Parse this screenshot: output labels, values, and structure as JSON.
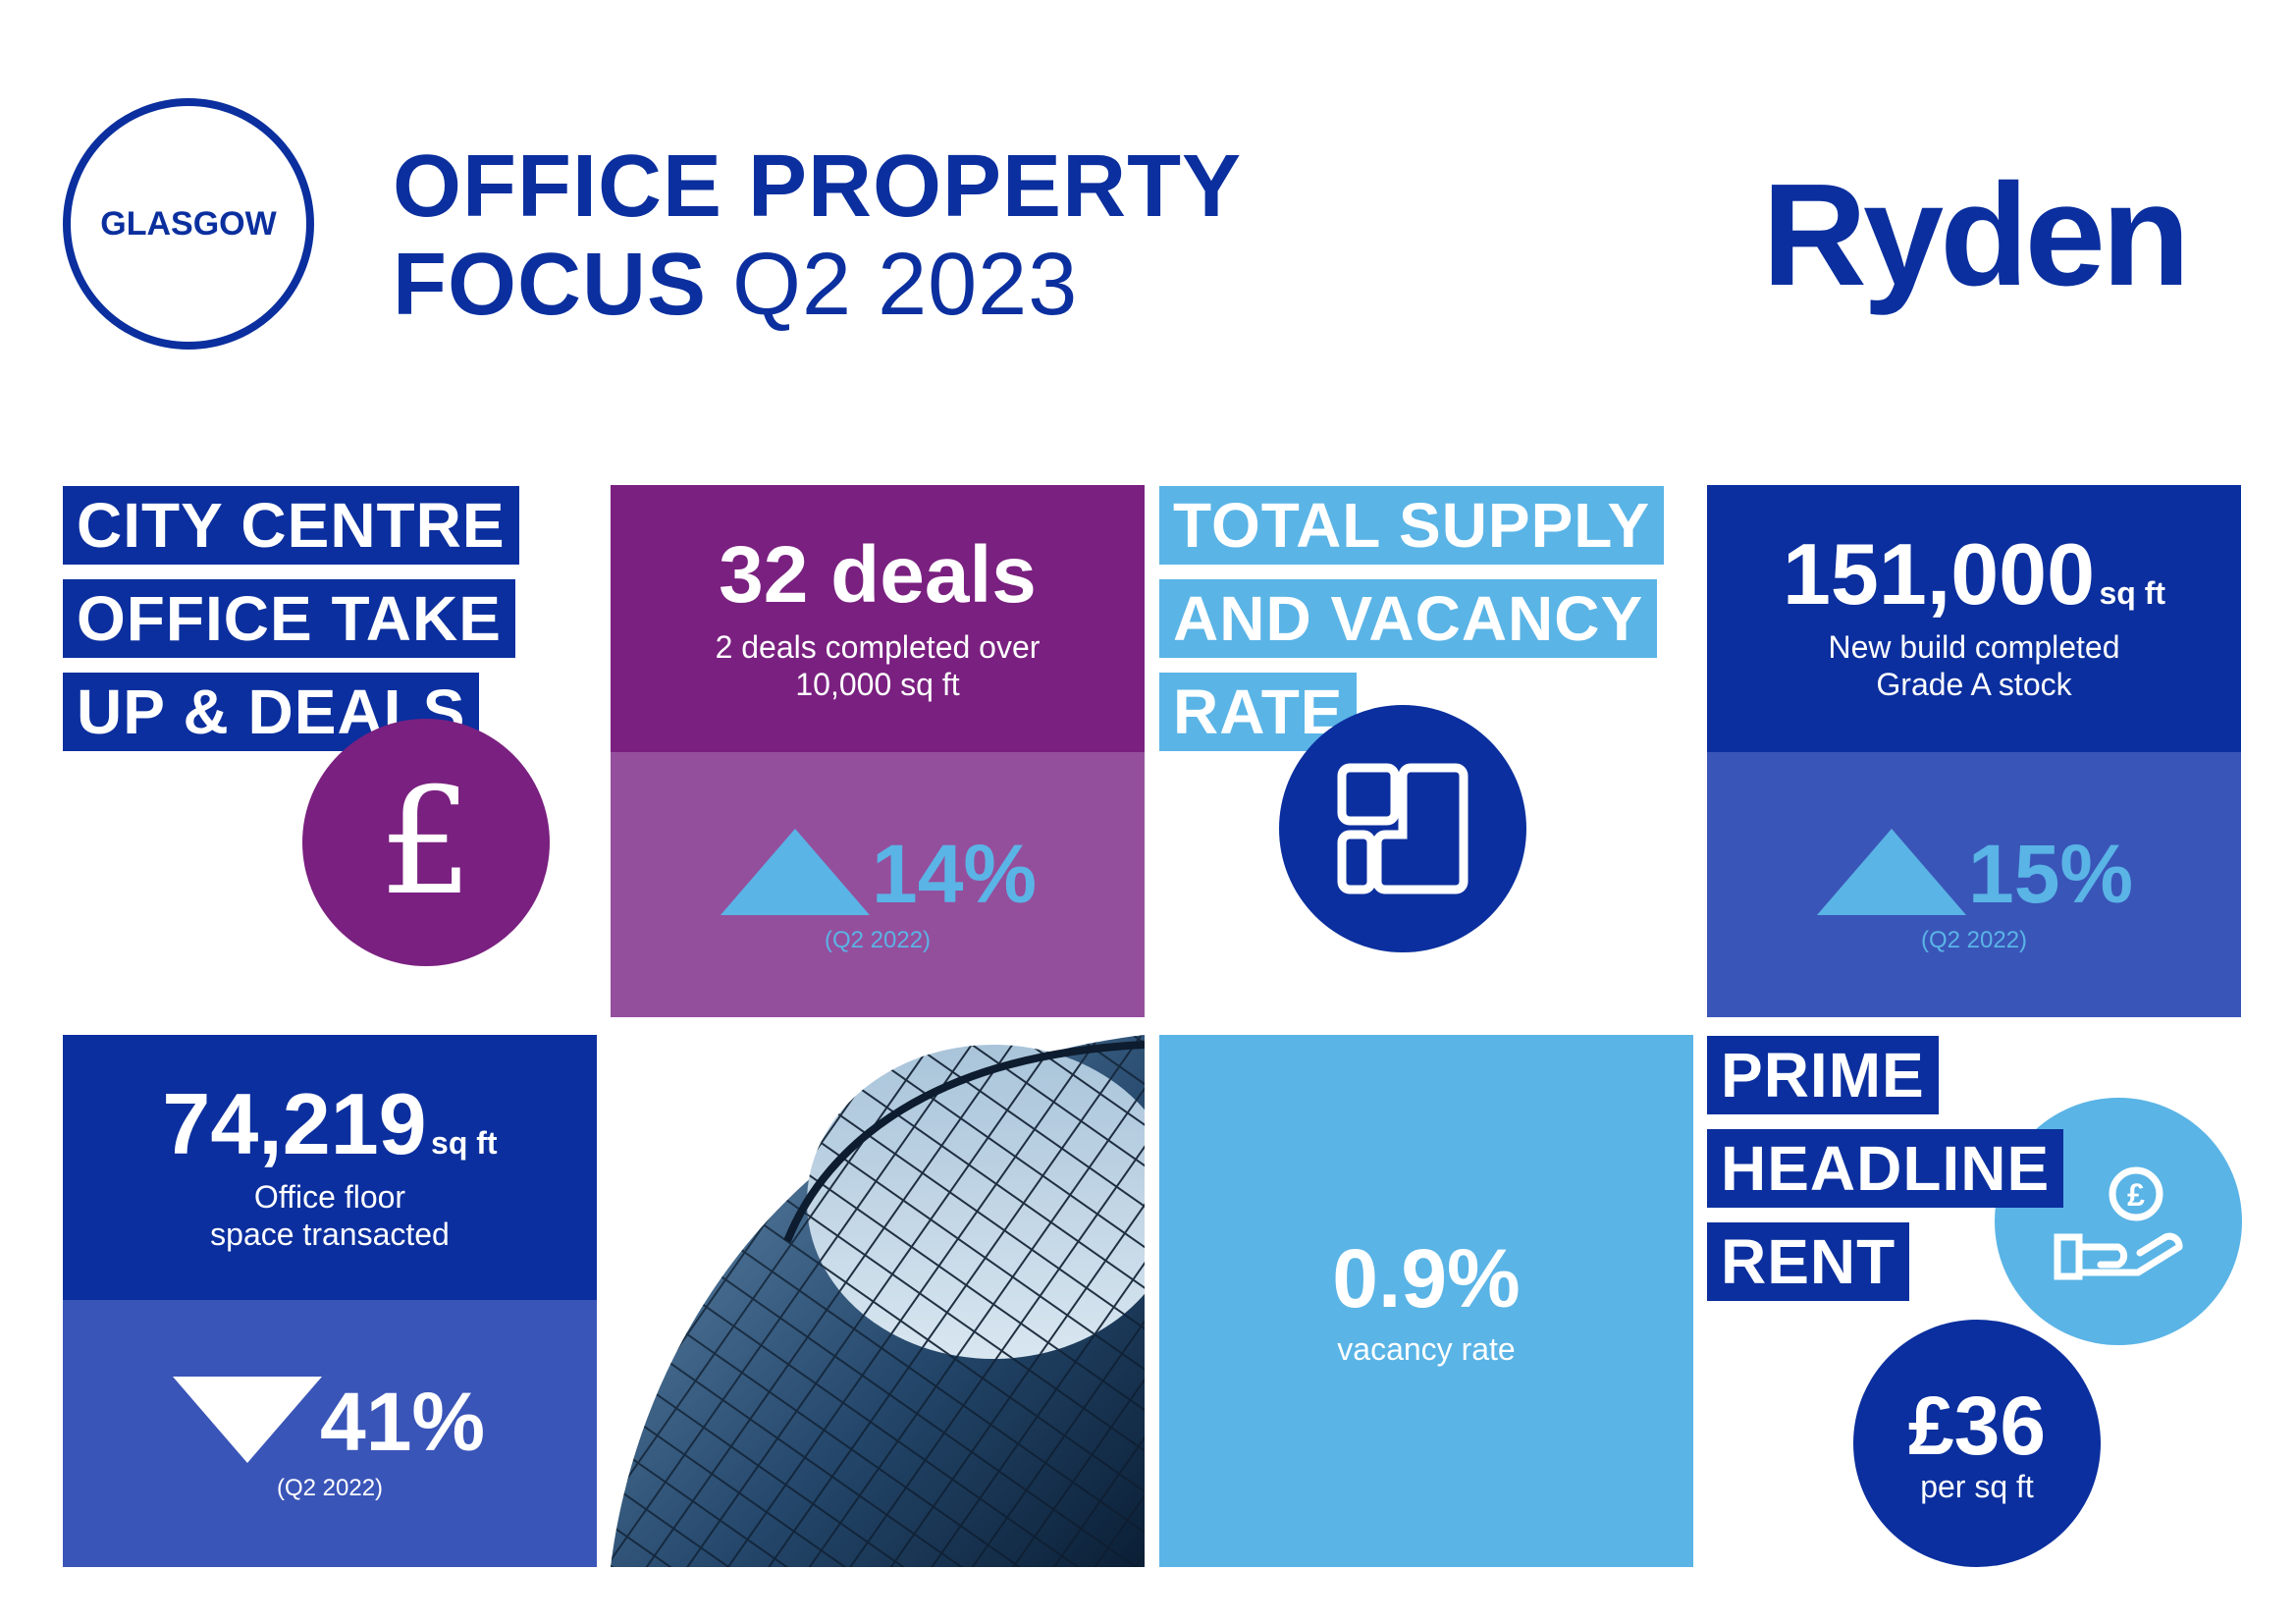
{
  "header": {
    "city": "GLASGOW",
    "title_line1": "OFFICE PROPERTY",
    "title_line2_bold": "FOCUS",
    "title_line2_rest": "Q2 2023",
    "logo": "Ryden"
  },
  "takeup": {
    "heading": [
      "CITY CENTRE",
      "OFFICE TAKE",
      "UP & DEALS"
    ],
    "icon": "pound-icon"
  },
  "deals": {
    "value": "32 deals",
    "sub_line1": "2 deals completed over",
    "sub_line2": "10,000 sq ft",
    "change_direction": "up",
    "change": "14%",
    "comparison": "(Q2 2022)"
  },
  "supply": {
    "heading": [
      "TOTAL SUPPLY",
      "AND VACANCY",
      "RATE"
    ],
    "icon": "floorplan-icon"
  },
  "newbuild": {
    "value": "151,000",
    "unit": "sq ft",
    "sub_line1": "New build completed",
    "sub_line2": "Grade A stock",
    "change_direction": "up",
    "change": "15%",
    "comparison": "(Q2 2022)"
  },
  "floorspace": {
    "value": "74,219",
    "unit": "sq ft",
    "sub_line1": "Office floor",
    "sub_line2": "space transacted",
    "change_direction": "down",
    "change": "41%",
    "comparison": "(Q2 2022)"
  },
  "vacancy": {
    "value": "0.9%",
    "label": "vacancy rate"
  },
  "rent": {
    "heading": [
      "PRIME",
      "HEADLINE",
      "RENT"
    ],
    "icon": "hand-coin-icon",
    "value": "£36",
    "unit": "per sq ft"
  },
  "colors": {
    "navy": "#0b2f9e",
    "mid_blue": "#3a55b8",
    "light_blue": "#5ab4e6",
    "purple": "#7a2080",
    "light_purple": "#944f9c"
  }
}
